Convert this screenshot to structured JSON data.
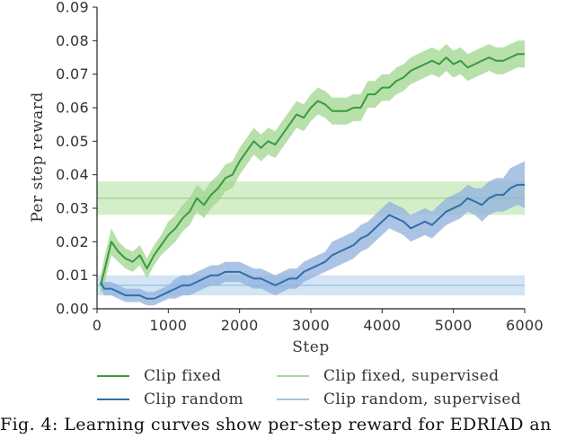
{
  "chart_data": {
    "type": "line",
    "xlabel": "Step",
    "ylabel": "Per step reward",
    "xlim": [
      0,
      6000
    ],
    "ylim": [
      0,
      0.09
    ],
    "xticks": [
      0,
      1000,
      2000,
      3000,
      4000,
      5000,
      6000
    ],
    "xtick_labels": [
      "0",
      "1000",
      "2000",
      "3000",
      "4000",
      "5000",
      "6000"
    ],
    "yticks": [
      0,
      0.01,
      0.02,
      0.03,
      0.04,
      0.05,
      0.06,
      0.07,
      0.08,
      0.09
    ],
    "ytick_labels": [
      "0.00",
      "0.01",
      "0.02",
      "0.03",
      "0.04",
      "0.05",
      "0.06",
      "0.07",
      "0.08",
      "0.09"
    ],
    "grid": false,
    "legend_position": "bottom",
    "series": [
      {
        "name": "Clip fixed",
        "color": "#3a9a3f",
        "band_color": "#9fd58f",
        "kind": "curve",
        "x": [
          50,
          100,
          200,
          300,
          400,
          500,
          600,
          700,
          800,
          900,
          1000,
          1100,
          1200,
          1300,
          1400,
          1500,
          1600,
          1700,
          1800,
          1900,
          2000,
          2100,
          2200,
          2300,
          2400,
          2500,
          2600,
          2700,
          2800,
          2900,
          3000,
          3100,
          3200,
          3300,
          3400,
          3500,
          3600,
          3700,
          3800,
          3900,
          4000,
          4100,
          4200,
          4300,
          4400,
          4500,
          4600,
          4700,
          4800,
          4900,
          5000,
          5100,
          5200,
          5300,
          5400,
          5500,
          5600,
          5700,
          5800,
          5900,
          6000
        ],
        "y": [
          0.007,
          0.011,
          0.02,
          0.017,
          0.015,
          0.014,
          0.016,
          0.012,
          0.016,
          0.019,
          0.022,
          0.024,
          0.027,
          0.029,
          0.033,
          0.031,
          0.034,
          0.036,
          0.039,
          0.04,
          0.044,
          0.047,
          0.05,
          0.048,
          0.05,
          0.049,
          0.052,
          0.055,
          0.058,
          0.057,
          0.06,
          0.062,
          0.061,
          0.059,
          0.059,
          0.059,
          0.06,
          0.06,
          0.064,
          0.064,
          0.066,
          0.066,
          0.068,
          0.069,
          0.071,
          0.072,
          0.073,
          0.074,
          0.073,
          0.075,
          0.073,
          0.074,
          0.072,
          0.073,
          0.074,
          0.075,
          0.074,
          0.074,
          0.075,
          0.076,
          0.076
        ],
        "spread": [
          0.003,
          0.004,
          0.004,
          0.003,
          0.003,
          0.003,
          0.003,
          0.003,
          0.003,
          0.003,
          0.004,
          0.004,
          0.004,
          0.004,
          0.004,
          0.004,
          0.004,
          0.004,
          0.004,
          0.004,
          0.004,
          0.004,
          0.004,
          0.004,
          0.004,
          0.004,
          0.004,
          0.004,
          0.004,
          0.004,
          0.004,
          0.004,
          0.004,
          0.004,
          0.004,
          0.004,
          0.004,
          0.004,
          0.004,
          0.004,
          0.004,
          0.004,
          0.004,
          0.004,
          0.004,
          0.004,
          0.004,
          0.004,
          0.004,
          0.004,
          0.004,
          0.004,
          0.004,
          0.004,
          0.004,
          0.004,
          0.004,
          0.004,
          0.004,
          0.004,
          0.004
        ]
      },
      {
        "name": "Clip random",
        "color": "#2f6faa",
        "band_color": "#8fb0de",
        "kind": "curve",
        "x": [
          50,
          100,
          200,
          300,
          400,
          500,
          600,
          700,
          800,
          900,
          1000,
          1100,
          1200,
          1300,
          1400,
          1500,
          1600,
          1700,
          1800,
          1900,
          2000,
          2100,
          2200,
          2300,
          2400,
          2500,
          2600,
          2700,
          2800,
          2900,
          3000,
          3100,
          3200,
          3300,
          3400,
          3500,
          3600,
          3700,
          3800,
          3900,
          4000,
          4100,
          4200,
          4300,
          4400,
          4500,
          4600,
          4700,
          4800,
          4900,
          5000,
          5100,
          5200,
          5300,
          5400,
          5500,
          5600,
          5700,
          5800,
          5900,
          6000
        ],
        "y": [
          0.008,
          0.006,
          0.006,
          0.005,
          0.004,
          0.004,
          0.004,
          0.003,
          0.003,
          0.004,
          0.005,
          0.006,
          0.007,
          0.007,
          0.008,
          0.009,
          0.01,
          0.01,
          0.011,
          0.011,
          0.011,
          0.01,
          0.009,
          0.009,
          0.008,
          0.007,
          0.008,
          0.009,
          0.009,
          0.011,
          0.012,
          0.013,
          0.014,
          0.016,
          0.017,
          0.018,
          0.019,
          0.021,
          0.022,
          0.024,
          0.026,
          0.028,
          0.027,
          0.026,
          0.024,
          0.025,
          0.026,
          0.025,
          0.027,
          0.029,
          0.03,
          0.031,
          0.033,
          0.032,
          0.031,
          0.033,
          0.034,
          0.034,
          0.036,
          0.037,
          0.037
        ],
        "spread": [
          0.002,
          0.002,
          0.002,
          0.002,
          0.002,
          0.002,
          0.002,
          0.002,
          0.002,
          0.002,
          0.002,
          0.003,
          0.003,
          0.003,
          0.003,
          0.003,
          0.003,
          0.003,
          0.003,
          0.003,
          0.003,
          0.003,
          0.003,
          0.003,
          0.003,
          0.003,
          0.003,
          0.003,
          0.003,
          0.003,
          0.003,
          0.003,
          0.003,
          0.004,
          0.004,
          0.004,
          0.004,
          0.004,
          0.004,
          0.004,
          0.004,
          0.004,
          0.004,
          0.004,
          0.004,
          0.004,
          0.004,
          0.004,
          0.004,
          0.004,
          0.004,
          0.004,
          0.004,
          0.004,
          0.005,
          0.005,
          0.005,
          0.005,
          0.006,
          0.006,
          0.007
        ]
      },
      {
        "name": "Clip fixed, supervised",
        "color": "#a8d89a",
        "band_color": "#c7e8b8",
        "kind": "hline",
        "y": 0.033,
        "band": [
          0.028,
          0.038
        ]
      },
      {
        "name": "Clip random, supervised",
        "color": "#9ec6e2",
        "band_color": "#c4dcf0",
        "kind": "hline",
        "y": 0.007,
        "band": [
          0.004,
          0.01
        ]
      }
    ]
  },
  "legend": {
    "items": [
      {
        "label": "Clip fixed",
        "color": "#3a9a3f"
      },
      {
        "label": "Clip fixed, supervised",
        "color": "#a8d89a"
      },
      {
        "label": "Clip random",
        "color": "#2f6faa"
      },
      {
        "label": "Clip random, supervised",
        "color": "#9ec6e2"
      }
    ]
  },
  "caption": "Fig. 4: Learning curves show per-step reward for EDRIAD an"
}
